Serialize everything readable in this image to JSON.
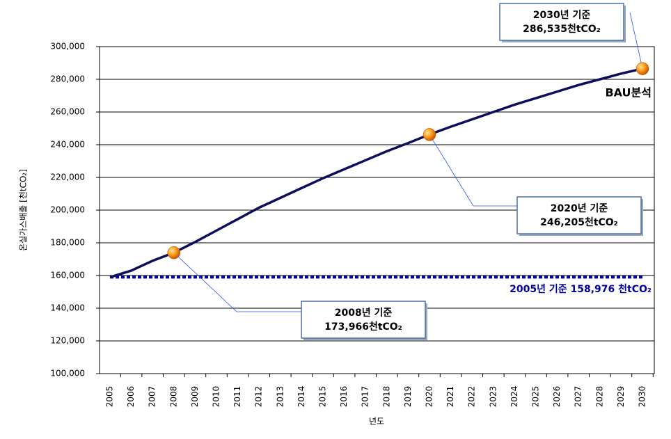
{
  "chart_data": {
    "type": "line",
    "x_label": "년도",
    "y_label": "온실가스배출 [천tCO₂]",
    "categories": [
      "2005",
      "2006",
      "2007",
      "2008",
      "2009",
      "2010",
      "2011",
      "2012",
      "2013",
      "2014",
      "2015",
      "2016",
      "2017",
      "2018",
      "2019",
      "2020",
      "2021",
      "2022",
      "2023",
      "2024",
      "2025",
      "2026",
      "2027",
      "2028",
      "2029",
      "2030"
    ],
    "series": [
      {
        "name": "BAU분석",
        "color": "#0d0d5e",
        "values": [
          158976,
          163000,
          169000,
          173966,
          180500,
          187500,
          194500,
          201500,
          207500,
          213500,
          219500,
          225000,
          230500,
          236000,
          241000,
          246205,
          251000,
          255500,
          260000,
          264500,
          268500,
          272500,
          276500,
          280000,
          283500,
          286535
        ]
      }
    ],
    "reference_line": {
      "value": 158976,
      "label": "2005년 기준 158,976 천tCO₂",
      "color": "#0000a0"
    },
    "highlights": [
      {
        "x": "2008",
        "value": 173966,
        "label": "2008년 기준",
        "value_label": "173,966천tCO₂"
      },
      {
        "x": "2020",
        "value": 246205,
        "label": "2020년 기준",
        "value_label": "246,205천tCO₂"
      },
      {
        "x": "2030",
        "value": 286535,
        "label": "2030년 기준",
        "value_label": "286,535천tCO₂"
      }
    ],
    "ylim": [
      100000,
      300000
    ],
    "yticks": [
      {
        "value": 100000,
        "label": "100,000"
      },
      {
        "value": 120000,
        "label": "120,000"
      },
      {
        "value": 140000,
        "label": "140,000"
      },
      {
        "value": 160000,
        "label": "160,000"
      },
      {
        "value": 180000,
        "label": "180,000"
      },
      {
        "value": 200000,
        "label": "200,000"
      },
      {
        "value": 220000,
        "label": "220,000"
      },
      {
        "value": 240000,
        "label": "240,000"
      },
      {
        "value": 260000,
        "label": "260,000"
      },
      {
        "value": 280000,
        "label": "280,000"
      },
      {
        "value": 300000,
        "label": "300,000"
      }
    ],
    "grid": true
  }
}
